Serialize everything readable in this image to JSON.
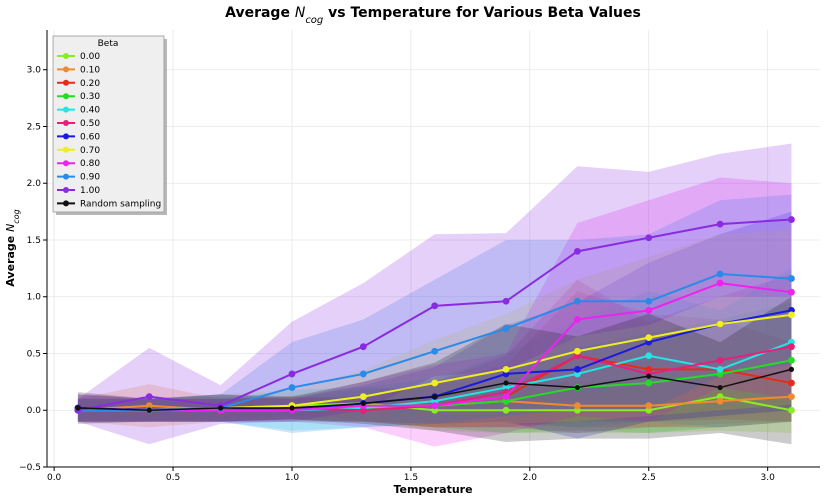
{
  "chart_data": {
    "type": "line",
    "title_prefix": "Average ",
    "title_var": "N",
    "title_sub": "cog",
    "title_suffix": " vs Temperature for Various Beta Values",
    "xlabel": "Temperature",
    "ylabel_prefix": "Average ",
    "ylabel_var": "N",
    "ylabel_sub": "cog",
    "xlim": [
      -0.03,
      3.22
    ],
    "ylim": [
      -0.5,
      3.35
    ],
    "xticks": [
      0.0,
      0.5,
      1.0,
      1.5,
      2.0,
      2.5,
      3.0
    ],
    "xtick_labels": [
      "0.0",
      "0.5",
      "1.0",
      "1.5",
      "2.0",
      "2.5",
      "3.0"
    ],
    "yticks": [
      -0.5,
      0.0,
      0.5,
      1.0,
      1.5,
      2.0,
      2.5,
      3.0
    ],
    "ytick_labels": [
      "−0.5",
      "0.0",
      "0.5",
      "1.0",
      "1.5",
      "2.0",
      "2.5",
      "3.0"
    ],
    "grid": true,
    "legend_title": "Beta",
    "legend_location": "top-left",
    "x": [
      0.1,
      0.4,
      0.7,
      1.0,
      1.3,
      1.6,
      1.9,
      2.2,
      2.5,
      2.8,
      3.1
    ],
    "series": [
      {
        "name": "0.00",
        "color": "#88ee22",
        "values": [
          0.0,
          0.0,
          0.0,
          0.04,
          0.06,
          0.0,
          0.0,
          0.0,
          0.0,
          0.12,
          0.0
        ],
        "lower": [
          -0.08,
          -0.1,
          -0.08,
          -0.05,
          -0.08,
          -0.18,
          -0.2,
          -0.2,
          -0.2,
          -0.18,
          -0.2
        ],
        "upper": [
          0.08,
          0.1,
          0.08,
          0.13,
          0.2,
          0.18,
          0.2,
          0.2,
          0.2,
          0.35,
          0.25
        ]
      },
      {
        "name": "0.10",
        "color": "#f08a30",
        "values": [
          0.0,
          0.04,
          0.0,
          0.02,
          0.04,
          0.04,
          0.08,
          0.04,
          0.04,
          0.08,
          0.12
        ],
        "lower": [
          -0.1,
          -0.15,
          -0.1,
          -0.08,
          -0.1,
          -0.15,
          -0.12,
          -0.15,
          -0.15,
          -0.12,
          -0.1
        ],
        "upper": [
          0.1,
          0.23,
          0.1,
          0.12,
          0.18,
          0.22,
          0.3,
          0.25,
          0.25,
          0.3,
          0.35
        ]
      },
      {
        "name": "0.20",
        "color": "#e82a1a",
        "values": [
          0.0,
          0.0,
          0.0,
          0.02,
          0.0,
          0.04,
          0.12,
          0.48,
          0.36,
          0.36,
          0.24
        ],
        "lower": [
          -0.1,
          -0.1,
          -0.1,
          -0.08,
          -0.1,
          -0.15,
          -0.15,
          -0.1,
          -0.1,
          -0.08,
          -0.1
        ],
        "upper": [
          0.1,
          0.1,
          0.1,
          0.12,
          0.1,
          0.25,
          0.4,
          1.05,
          0.85,
          0.8,
          0.6
        ]
      },
      {
        "name": "0.30",
        "color": "#22dd22",
        "values": [
          0.0,
          0.0,
          0.02,
          0.0,
          0.02,
          0.04,
          0.08,
          0.2,
          0.24,
          0.32,
          0.44
        ],
        "lower": [
          -0.1,
          -0.1,
          -0.1,
          -0.1,
          -0.1,
          -0.15,
          -0.2,
          -0.18,
          -0.2,
          -0.15,
          -0.1
        ],
        "upper": [
          0.1,
          0.1,
          0.12,
          0.1,
          0.14,
          0.25,
          0.35,
          0.55,
          0.68,
          0.8,
          0.95
        ]
      },
      {
        "name": "0.40",
        "color": "#22e5e5",
        "values": [
          0.0,
          0.0,
          0.0,
          0.0,
          0.02,
          0.08,
          0.2,
          0.32,
          0.48,
          0.36,
          0.6
        ],
        "lower": [
          -0.1,
          -0.1,
          -0.1,
          -0.18,
          -0.15,
          -0.12,
          -0.1,
          -0.15,
          -0.1,
          -0.15,
          -0.1
        ],
        "upper": [
          0.1,
          0.1,
          0.1,
          0.18,
          0.2,
          0.28,
          0.5,
          0.8,
          1.05,
          0.88,
          1.25
        ]
      },
      {
        "name": "0.50",
        "color": "#e5207a",
        "values": [
          0.02,
          0.0,
          0.0,
          0.02,
          0.0,
          0.04,
          0.16,
          0.48,
          0.32,
          0.44,
          0.56
        ],
        "lower": [
          -0.1,
          -0.1,
          -0.1,
          -0.08,
          -0.1,
          -0.15,
          -0.15,
          -0.2,
          -0.15,
          -0.15,
          -0.1
        ],
        "upper": [
          0.14,
          0.1,
          0.1,
          0.12,
          0.1,
          0.25,
          0.48,
          1.15,
          0.78,
          1.0,
          1.2
        ]
      },
      {
        "name": "0.60",
        "color": "#1a1ae0",
        "values": [
          0.02,
          0.0,
          0.02,
          0.0,
          0.06,
          0.12,
          0.32,
          0.36,
          0.6,
          0.76,
          0.88
        ],
        "lower": [
          -0.1,
          -0.1,
          -0.1,
          -0.1,
          -0.1,
          -0.12,
          -0.1,
          -0.25,
          -0.1,
          -0.05,
          0.0
        ],
        "upper": [
          0.14,
          0.1,
          0.14,
          0.1,
          0.22,
          0.38,
          0.75,
          0.95,
          1.3,
          1.55,
          1.75
        ]
      },
      {
        "name": "0.70",
        "color": "#eeee22",
        "values": [
          0.0,
          0.0,
          0.02,
          0.04,
          0.12,
          0.24,
          0.36,
          0.52,
          0.64,
          0.76,
          0.84
        ],
        "lower": [
          -0.1,
          -0.1,
          -0.1,
          -0.1,
          -0.1,
          -0.15,
          -0.12,
          -0.1,
          -0.05,
          0.0,
          0.05
        ],
        "upper": [
          0.1,
          0.1,
          0.14,
          0.18,
          0.35,
          0.62,
          0.85,
          1.15,
          1.35,
          1.55,
          1.6
        ]
      },
      {
        "name": "0.80",
        "color": "#ee22ee",
        "values": [
          0.0,
          0.0,
          0.0,
          0.0,
          0.04,
          0.04,
          0.12,
          0.8,
          0.88,
          1.12,
          1.04
        ],
        "lower": [
          -0.1,
          -0.1,
          -0.1,
          -0.1,
          -0.15,
          -0.32,
          -0.2,
          -0.05,
          -0.1,
          0.2,
          0.1
        ],
        "upper": [
          0.1,
          0.1,
          0.1,
          0.1,
          0.25,
          0.4,
          0.5,
          1.65,
          1.85,
          2.05,
          2.0
        ]
      },
      {
        "name": "0.90",
        "color": "#2a8ae8",
        "values": [
          0.0,
          0.0,
          0.02,
          0.2,
          0.32,
          0.52,
          0.72,
          0.96,
          0.96,
          1.2,
          1.16
        ],
        "lower": [
          -0.1,
          -0.1,
          -0.1,
          -0.2,
          -0.15,
          -0.12,
          -0.05,
          0.0,
          0.0,
          0.3,
          0.4
        ],
        "upper": [
          0.1,
          0.1,
          0.14,
          0.6,
          0.8,
          1.15,
          1.5,
          1.5,
          1.55,
          1.85,
          1.9
        ]
      },
      {
        "name": "1.00",
        "color": "#8a2be2",
        "values": [
          0.0,
          0.12,
          0.04,
          0.32,
          0.56,
          0.92,
          0.96,
          1.4,
          1.52,
          1.64,
          1.68
        ],
        "lower": [
          -0.1,
          -0.3,
          -0.12,
          -0.1,
          0.0,
          0.3,
          0.35,
          0.65,
          0.75,
          1.0,
          1.0
        ],
        "upper": [
          0.1,
          0.55,
          0.22,
          0.78,
          1.12,
          1.55,
          1.56,
          2.15,
          2.1,
          2.26,
          2.35
        ]
      },
      {
        "name": "Random sampling",
        "color": "#111111",
        "values": [
          0.02,
          0.0,
          0.02,
          0.02,
          0.06,
          0.12,
          0.24,
          0.2,
          0.3,
          0.2,
          0.36
        ],
        "lower": [
          -0.12,
          -0.1,
          -0.1,
          -0.08,
          -0.12,
          -0.18,
          -0.28,
          -0.25,
          -0.25,
          -0.2,
          -0.3
        ],
        "upper": [
          0.16,
          0.1,
          0.14,
          0.12,
          0.25,
          0.42,
          0.76,
          0.65,
          0.85,
          0.6,
          1.0
        ]
      }
    ]
  }
}
